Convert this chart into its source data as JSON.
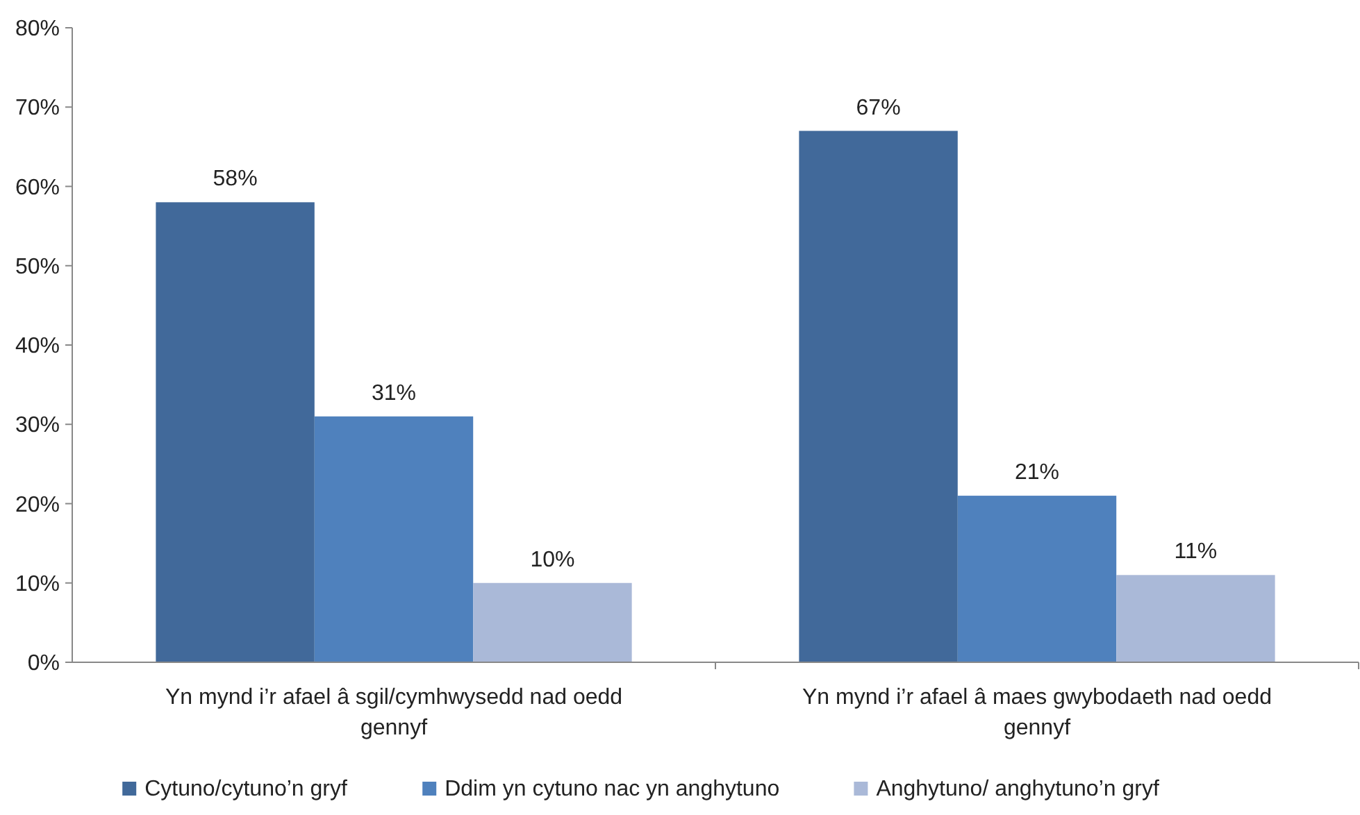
{
  "chart_data": {
    "type": "bar",
    "categories": [
      "Yn mynd i’r afael â sgil/cymhwysedd nad oedd gennyf",
      "Yn mynd i’r afael â maes gwybodaeth nad oedd gennyf"
    ],
    "series": [
      {
        "name": "Cytuno/cytuno’n gryf",
        "color": "#41699a",
        "values": [
          58,
          67
        ],
        "value_labels": [
          "58%",
          "67%"
        ]
      },
      {
        "name": "Ddim yn cytuno nac yn anghytuno",
        "color": "#4f81bd",
        "values": [
          31,
          21
        ],
        "value_labels": [
          "31%",
          "21%"
        ]
      },
      {
        "name": "Anghytuno/ anghytuno’n gryf",
        "color": "#aab9d8",
        "values": [
          10,
          11
        ],
        "value_labels": [
          "10%",
          "11%"
        ]
      }
    ],
    "ylim": [
      0,
      80
    ],
    "yticks": [
      {
        "value": 0,
        "label": "0%"
      },
      {
        "value": 10,
        "label": "10%"
      },
      {
        "value": 20,
        "label": "20%"
      },
      {
        "value": 30,
        "label": "30%"
      },
      {
        "value": 40,
        "label": "40%"
      },
      {
        "value": 50,
        "label": "50%"
      },
      {
        "value": 60,
        "label": "60%"
      },
      {
        "value": 70,
        "label": "70%"
      },
      {
        "value": 80,
        "label": "80%"
      }
    ],
    "legend": "bottom"
  }
}
